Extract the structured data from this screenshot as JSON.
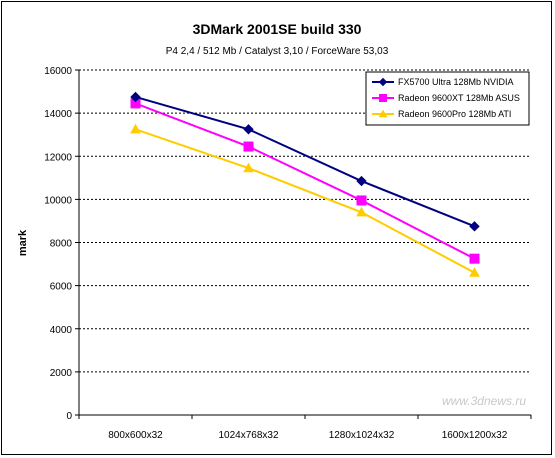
{
  "chart_data": {
    "type": "line",
    "title": "3DMark 2001SE build 330",
    "subtitle": "P4 2,4 / 512 Mb / Catalyst 3,10 / ForceWare 53,03",
    "xlabel": "",
    "ylabel": "mark",
    "categories": [
      "800x600x32",
      "1024x768x32",
      "1280x1024x32",
      "1600x1200x32"
    ],
    "ylim": [
      0,
      16000
    ],
    "yticks": [
      "0",
      "2000",
      "4000",
      "6000",
      "8000",
      "10000",
      "12000",
      "14000",
      "16000"
    ],
    "grid": true,
    "legend_position": "top-right",
    "series": [
      {
        "name": "FX5700 Ultra 128Mb NVIDIA",
        "color": "#000080",
        "marker": "diamond",
        "values": [
          14750,
          13250,
          10850,
          8750
        ]
      },
      {
        "name": "Radeon 9600XT 128Mb ASUS",
        "color": "#ff00ff",
        "marker": "square",
        "values": [
          14450,
          12450,
          9950,
          7250
        ]
      },
      {
        "name": "Radeon 9600Pro 128Mb ATI",
        "color": "#ffcc00",
        "marker": "triangle",
        "values": [
          13250,
          11450,
          9400,
          6600
        ]
      }
    ],
    "watermark": "www.3dnews.ru"
  }
}
